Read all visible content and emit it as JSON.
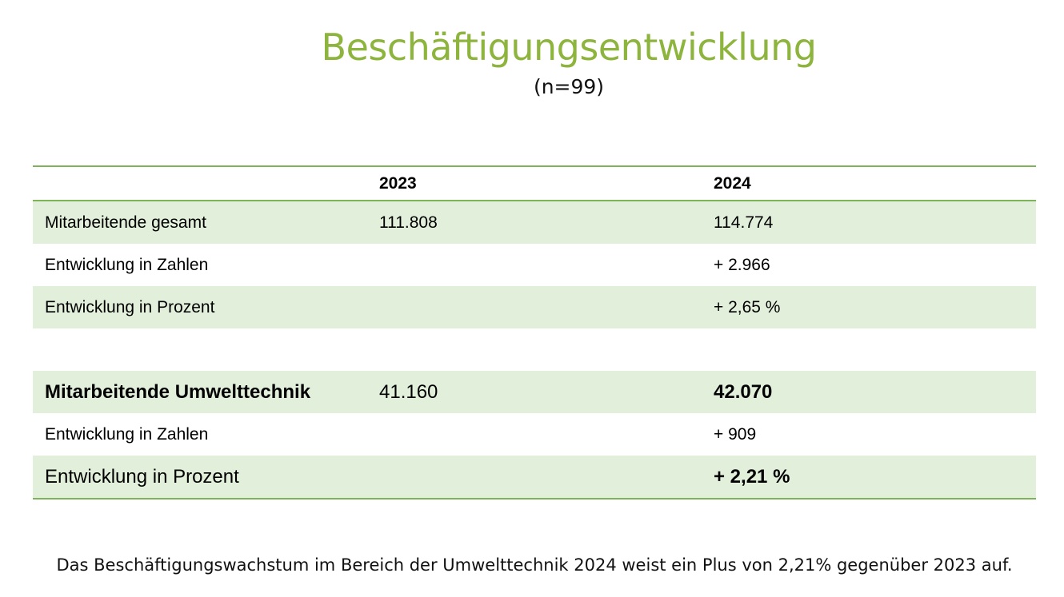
{
  "header": {
    "title": "Beschäftigungsentwicklung",
    "subtitle": "(n=99)"
  },
  "table": {
    "columns": [
      "",
      "2023",
      "2024"
    ],
    "rows": [
      {
        "label": "Mitarbeitende gesamt",
        "y2023": "111.808",
        "y2024": "114.774"
      },
      {
        "label": "Entwicklung in Zahlen",
        "y2023": "",
        "y2024": "+ 2.966"
      },
      {
        "label": "Entwicklung in Prozent",
        "y2023": "",
        "y2024": "+ 2,65 %"
      },
      {
        "label": "Mitarbeitende Umwelttechnik",
        "y2023": "41.160",
        "y2024": "42.070"
      },
      {
        "label": "Entwicklung in Zahlen",
        "y2023": "",
        "y2024": "+ 909"
      },
      {
        "label": "Entwicklung in Prozent",
        "y2023": "",
        "y2024": "+ 2,21 %"
      }
    ]
  },
  "footer": {
    "text": "Das Beschäftigungswachstum im Bereich der Umwelttechnik 2024 weist ein Plus von 2,21% gegenüber 2023 auf."
  },
  "colors": {
    "title": "#8db43c",
    "rule": "#7fb35a",
    "row_shade": "#e2efda"
  }
}
